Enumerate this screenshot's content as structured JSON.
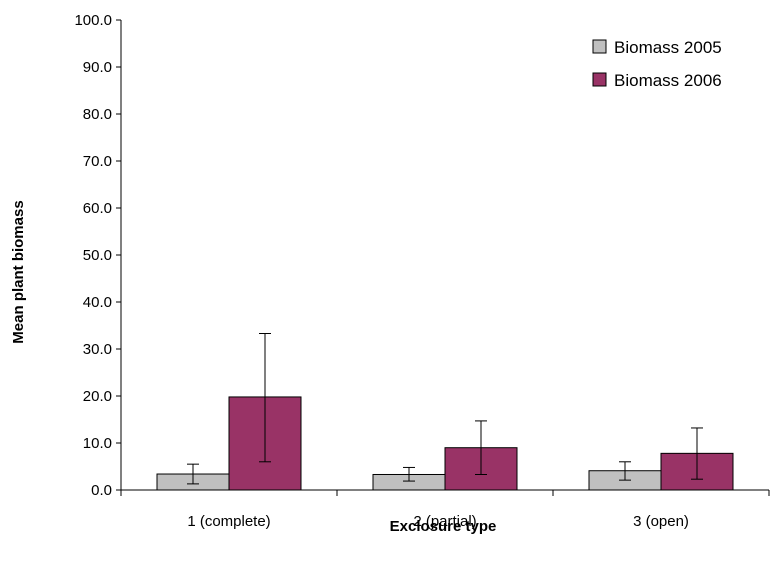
{
  "chart_data": {
    "type": "bar",
    "title": "",
    "xlabel": "Exclosure type",
    "ylabel": "Mean plant biomass",
    "ylim": [
      0,
      100
    ],
    "y_ticks": [
      "0.0",
      "10.0",
      "20.0",
      "30.0",
      "40.0",
      "50.0",
      "60.0",
      "70.0",
      "80.0",
      "90.0",
      "100.0"
    ],
    "categories": [
      "1 (complete)",
      "2 (partial)",
      "3 (open)"
    ],
    "series": [
      {
        "name": "Biomass 2005",
        "color": "#c0c0c0",
        "values": [
          3.4,
          3.3,
          4.1
        ],
        "error_low": [
          1.3,
          1.9,
          2.1
        ],
        "error_high": [
          5.5,
          4.8,
          6.0
        ]
      },
      {
        "name": "Biomass 2006",
        "color": "#993366",
        "values": [
          19.8,
          9.0,
          7.8
        ],
        "error_low": [
          6.0,
          3.3,
          2.3
        ],
        "error_high": [
          33.3,
          14.7,
          13.2
        ]
      }
    ],
    "legend_position": "top-right",
    "grid": false
  }
}
